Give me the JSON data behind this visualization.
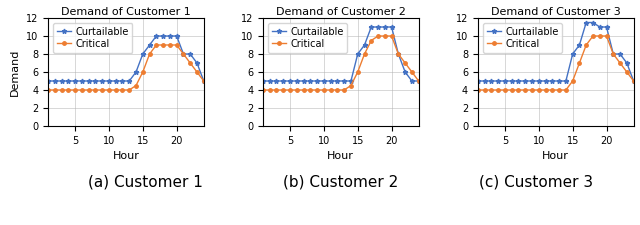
{
  "hours": [
    1,
    2,
    3,
    4,
    5,
    6,
    7,
    8,
    9,
    10,
    11,
    12,
    13,
    14,
    15,
    16,
    17,
    18,
    19,
    20,
    21,
    22,
    23,
    24
  ],
  "customers": [
    {
      "title": "Demand of Customer 1",
      "curtailable": [
        5,
        5,
        5,
        5,
        5,
        5,
        5,
        5,
        5,
        5,
        5,
        5,
        5,
        6,
        8,
        9,
        10,
        10,
        10,
        10,
        8,
        8,
        7,
        5
      ],
      "critical": [
        4,
        4,
        4,
        4,
        4,
        4,
        4,
        4,
        4,
        4,
        4,
        4,
        4,
        4.5,
        6,
        8,
        9,
        9,
        9,
        9,
        8,
        7,
        6,
        5
      ]
    },
    {
      "title": "Demand of Customer 2",
      "curtailable": [
        5,
        5,
        5,
        5,
        5,
        5,
        5,
        5,
        5,
        5,
        5,
        5,
        5,
        5,
        8,
        9,
        11,
        11,
        11,
        11,
        8,
        6,
        5,
        5
      ],
      "critical": [
        4,
        4,
        4,
        4,
        4,
        4,
        4,
        4,
        4,
        4,
        4,
        4,
        4,
        4.5,
        6,
        8,
        9.5,
        10,
        10,
        10,
        8,
        7,
        6,
        5
      ]
    },
    {
      "title": "Demand of Customer 3",
      "curtailable": [
        5,
        5,
        5,
        5,
        5,
        5,
        5,
        5,
        5,
        5,
        5,
        5,
        5,
        5,
        8,
        9,
        11.5,
        11.5,
        11,
        11,
        8,
        8,
        7,
        5
      ],
      "critical": [
        4,
        4,
        4,
        4,
        4,
        4,
        4,
        4,
        4,
        4,
        4,
        4,
        4,
        4,
        5,
        7,
        9,
        10,
        10,
        10,
        8,
        7,
        6,
        5
      ]
    }
  ],
  "curtailable_color": "#4472c4",
  "critical_color": "#ed7d31",
  "xlim": [
    1,
    24
  ],
  "ylim": [
    0,
    12
  ],
  "xticks": [
    5,
    10,
    15,
    20
  ],
  "yticks": [
    0,
    2,
    4,
    6,
    8,
    10,
    12
  ],
  "xlabel": "Hour",
  "ylabel": "Demand",
  "captions": [
    "(a) Customer 1",
    "(b) Customer 2",
    "(c) Customer 3"
  ],
  "legend_labels": [
    "Curtailable",
    "Critical"
  ],
  "caption_fontsize": 11,
  "title_fontsize": 8,
  "tick_fontsize": 7,
  "axis_label_fontsize": 8,
  "legend_fontsize": 7
}
